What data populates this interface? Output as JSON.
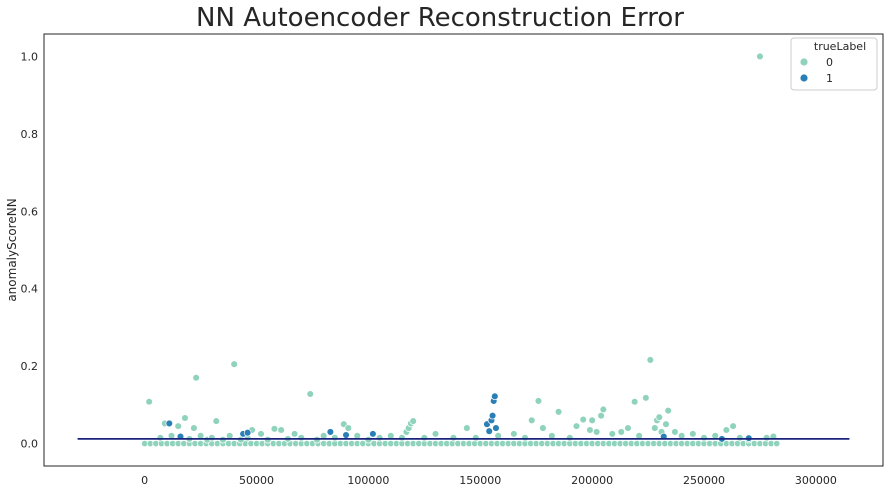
{
  "chart_data": {
    "type": "scatter",
    "title": "NN Autoencoder Reconstruction Error",
    "xlabel": "",
    "ylabel": "anomalyScoreNN",
    "xlim": [
      -45000,
      330000
    ],
    "ylim": [
      -0.058,
      1.058
    ],
    "x_ticks": [
      0,
      50000,
      100000,
      150000,
      200000,
      250000,
      300000
    ],
    "x_tick_labels": [
      "0",
      "50000",
      "100000",
      "150000",
      "200000",
      "250000",
      "300000"
    ],
    "y_ticks": [
      0.0,
      0.2,
      0.4,
      0.6,
      0.8,
      1.0
    ],
    "y_tick_labels": [
      "0.0",
      "0.2",
      "0.4",
      "0.6",
      "0.8",
      "1.0"
    ],
    "grid": false,
    "legend": {
      "title": "trueLabel",
      "placement": "top-right",
      "entries": [
        {
          "label": "0",
          "color": "#8fd3bd"
        },
        {
          "label": "1",
          "color": "#2a7fb6"
        }
      ]
    },
    "threshold_line": {
      "y": 0.012,
      "x_start": -30000,
      "x_end": 315000,
      "color": "#1a237e"
    },
    "series": [
      {
        "label": "0",
        "color": "#8fd3bd",
        "baseline": {
          "x_start": 0,
          "x_end": 284000,
          "step": 2500,
          "y": 0.0
        },
        "points": [
          [
            2000,
            0.108
          ],
          [
            7000,
            0.015
          ],
          [
            9000,
            0.052
          ],
          [
            12000,
            0.02
          ],
          [
            15000,
            0.045
          ],
          [
            18000,
            0.066
          ],
          [
            20000,
            0.012
          ],
          [
            22000,
            0.04
          ],
          [
            23000,
            0.17
          ],
          [
            25000,
            0.02
          ],
          [
            28000,
            0.01
          ],
          [
            30000,
            0.015
          ],
          [
            32000,
            0.058
          ],
          [
            35000,
            0.01
          ],
          [
            38000,
            0.02
          ],
          [
            40000,
            0.205
          ],
          [
            43000,
            0.01
          ],
          [
            46000,
            0.015
          ],
          [
            48000,
            0.035
          ],
          [
            52000,
            0.025
          ],
          [
            55000,
            0.01
          ],
          [
            58000,
            0.038
          ],
          [
            61000,
            0.035
          ],
          [
            64000,
            0.012
          ],
          [
            67000,
            0.025
          ],
          [
            70000,
            0.015
          ],
          [
            74000,
            0.128
          ],
          [
            77000,
            0.01
          ],
          [
            80000,
            0.02
          ],
          [
            85000,
            0.015
          ],
          [
            89000,
            0.05
          ],
          [
            91000,
            0.04
          ],
          [
            95000,
            0.02
          ],
          [
            100000,
            0.01
          ],
          [
            105000,
            0.015
          ],
          [
            110000,
            0.02
          ],
          [
            115000,
            0.015
          ],
          [
            117000,
            0.03
          ],
          [
            118000,
            0.04
          ],
          [
            119000,
            0.052
          ],
          [
            120000,
            0.058
          ],
          [
            125000,
            0.015
          ],
          [
            130000,
            0.025
          ],
          [
            138000,
            0.015
          ],
          [
            144000,
            0.04
          ],
          [
            148000,
            0.015
          ],
          [
            158000,
            0.02
          ],
          [
            165000,
            0.025
          ],
          [
            170000,
            0.015
          ],
          [
            173000,
            0.06
          ],
          [
            176000,
            0.11
          ],
          [
            178000,
            0.04
          ],
          [
            182000,
            0.02
          ],
          [
            185000,
            0.082
          ],
          [
            190000,
            0.015
          ],
          [
            193000,
            0.045
          ],
          [
            196000,
            0.062
          ],
          [
            199000,
            0.035
          ],
          [
            200000,
            0.06
          ],
          [
            202000,
            0.03
          ],
          [
            204000,
            0.072
          ],
          [
            205000,
            0.088
          ],
          [
            209000,
            0.025
          ],
          [
            213000,
            0.03
          ],
          [
            216000,
            0.04
          ],
          [
            219000,
            0.108
          ],
          [
            221000,
            0.02
          ],
          [
            224000,
            0.118
          ],
          [
            226000,
            0.216
          ],
          [
            228000,
            0.04
          ],
          [
            229000,
            0.06
          ],
          [
            230000,
            0.068
          ],
          [
            231000,
            0.03
          ],
          [
            233000,
            0.05
          ],
          [
            234000,
            0.085
          ],
          [
            237000,
            0.03
          ],
          [
            240000,
            0.02
          ],
          [
            245000,
            0.025
          ],
          [
            250000,
            0.015
          ],
          [
            255000,
            0.02
          ],
          [
            260000,
            0.035
          ],
          [
            263000,
            0.045
          ],
          [
            266000,
            0.015
          ],
          [
            270000,
            0.01
          ],
          [
            275000,
            1.0
          ],
          [
            278000,
            0.015
          ],
          [
            281000,
            0.018
          ]
        ]
      },
      {
        "label": "1",
        "color": "#2a7fb6",
        "points": [
          [
            11000,
            0.052
          ],
          [
            16000,
            0.018
          ],
          [
            44000,
            0.025
          ],
          [
            46000,
            0.028
          ],
          [
            83000,
            0.03
          ],
          [
            90000,
            0.022
          ],
          [
            102000,
            0.025
          ],
          [
            153000,
            0.05
          ],
          [
            154000,
            0.032
          ],
          [
            155000,
            0.06
          ],
          [
            155500,
            0.072
          ],
          [
            156000,
            0.11
          ],
          [
            156500,
            0.122
          ],
          [
            157000,
            0.04
          ],
          [
            232000,
            0.018
          ],
          [
            258000,
            0.012
          ],
          [
            270000,
            0.014
          ]
        ]
      }
    ]
  }
}
